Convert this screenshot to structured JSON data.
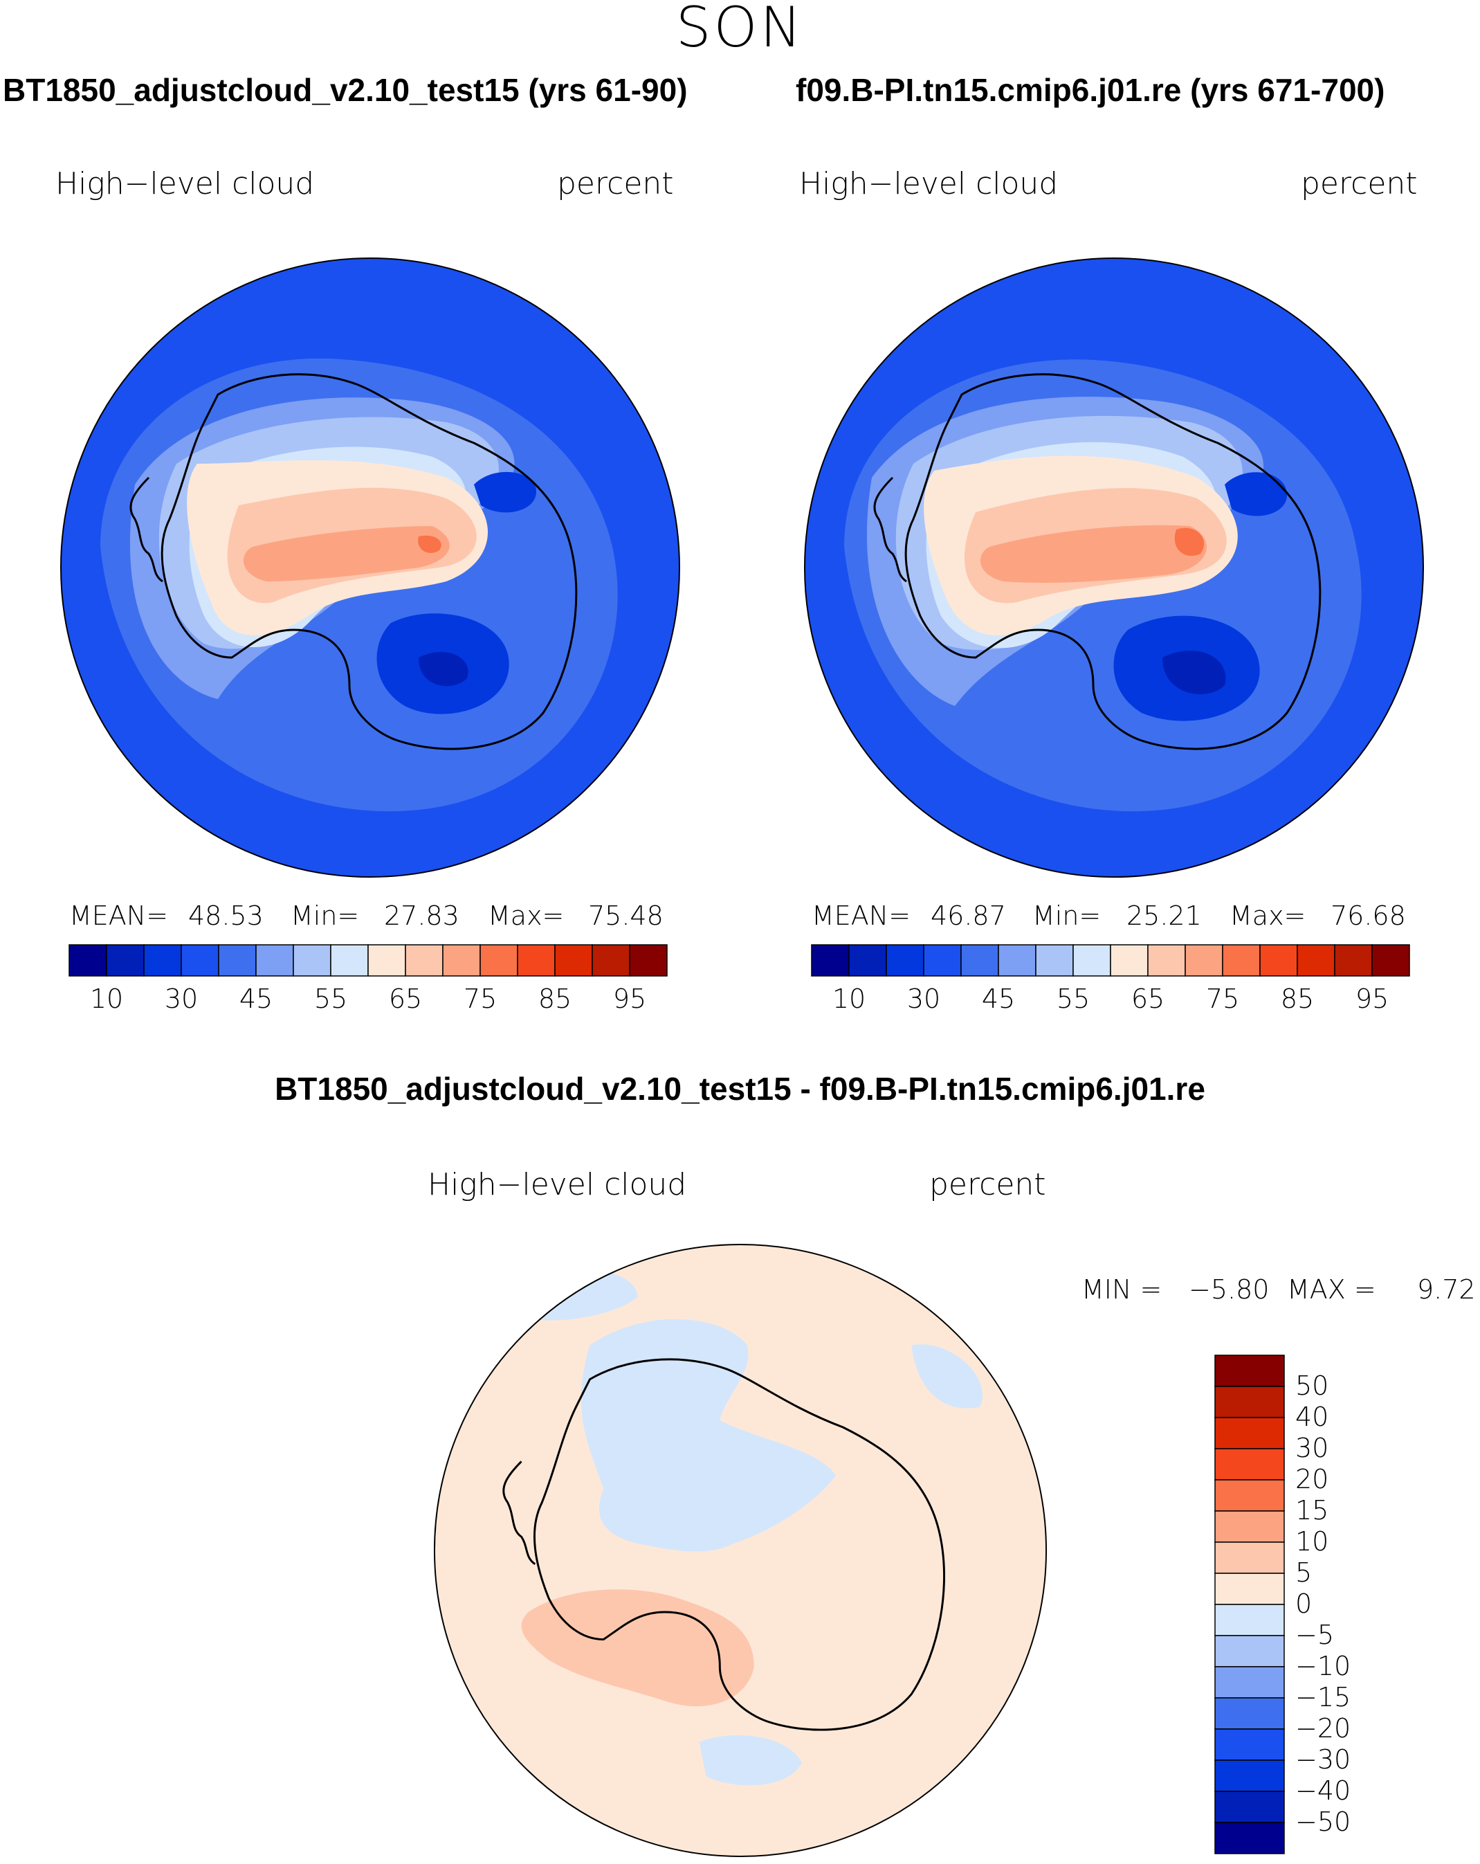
{
  "season": "SON",
  "panels": [
    {
      "title": "BT1850_adjustcloud_v2.10_test15 (yrs 61-90)",
      "variable": "High−level cloud",
      "units": "percent",
      "stats": {
        "mean_label": "MEAN=",
        "mean": "48.53",
        "min_label": "Min=",
        "min": "27.83",
        "max_label": "Max=",
        "max": "75.48"
      }
    },
    {
      "title": "f09.B-PI.tn15.cmip6.j01.re (yrs 671-700)",
      "variable": "High−level cloud",
      "units": "percent",
      "stats": {
        "mean_label": "MEAN=",
        "mean": "46.87",
        "min_label": "Min=",
        "min": "25.21",
        "max_label": "Max=",
        "max": "76.68"
      }
    }
  ],
  "diff_panel": {
    "title": "BT1850_adjustcloud_v2.10_test15 - f09.B-PI.tn15.cmip6.j01.re",
    "variable": "High−level cloud",
    "units": "percent",
    "stats": {
      "min_label": "MIN =",
      "min": "−5.80",
      "max_label": "MAX =",
      "max": "9.72"
    }
  },
  "colorbar_abs": {
    "colors": [
      "#00008f",
      "#0020b8",
      "#0238de",
      "#1a50f0",
      "#3e6fee",
      "#7d9ff4",
      "#aac4f8",
      "#d4e6fb",
      "#fde8d8",
      "#fdc7ae",
      "#fca482",
      "#fa7248",
      "#f4471e",
      "#dd2a02",
      "#b91c00",
      "#860000"
    ],
    "tick_labels": [
      "10",
      "30",
      "45",
      "55",
      "65",
      "75",
      "85",
      "95"
    ]
  },
  "colorbar_diff": {
    "colors_top_to_bottom": [
      "#860000",
      "#b91c00",
      "#dd2a02",
      "#f4471e",
      "#fa7248",
      "#fca482",
      "#fdc7ae",
      "#fde8d8",
      "#d4e6fb",
      "#aac4f8",
      "#7d9ff4",
      "#3e6fee",
      "#1a50f0",
      "#0238de",
      "#0020b8",
      "#00008f"
    ],
    "tick_labels": [
      "50",
      "40",
      "30",
      "20",
      "15",
      "10",
      "5",
      "0",
      "−5",
      "−10",
      "−15",
      "−20",
      "−30",
      "−40",
      "−50"
    ]
  },
  "map_colors": {
    "ocean": "#3e6fee",
    "outer": "#1a50f0",
    "ring": "#7d9ff4",
    "pale": "#aac4f8",
    "lightest": "#d4e6fb",
    "warm1": "#fde8d8",
    "warm2": "#fdc7ae",
    "warm3": "#fca482",
    "warm4": "#fa7248",
    "deep": "#0238de",
    "deeper": "#0020b8",
    "diff_base": "#fde8d8",
    "diff_neg": "#d4e6fb",
    "diff_pos": "#fdc7ae",
    "coast": "#000000"
  }
}
